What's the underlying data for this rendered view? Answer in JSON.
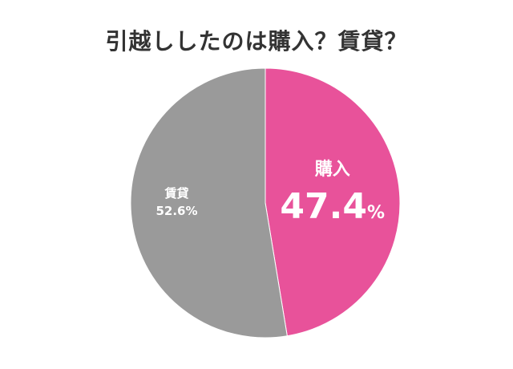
{
  "chart_data": {
    "type": "pie",
    "title": "引越ししたのは購入？賃貸？",
    "slices": [
      {
        "label": "購入",
        "value": 47.4,
        "value_label": "47.4",
        "unit": "%",
        "color": "#e8529a"
      },
      {
        "label": "賃貸",
        "value": 52.6,
        "value_label": "52.6%",
        "color": "#9a9a9a"
      }
    ],
    "start": "12 o'clock",
    "direction": "clockwise"
  }
}
